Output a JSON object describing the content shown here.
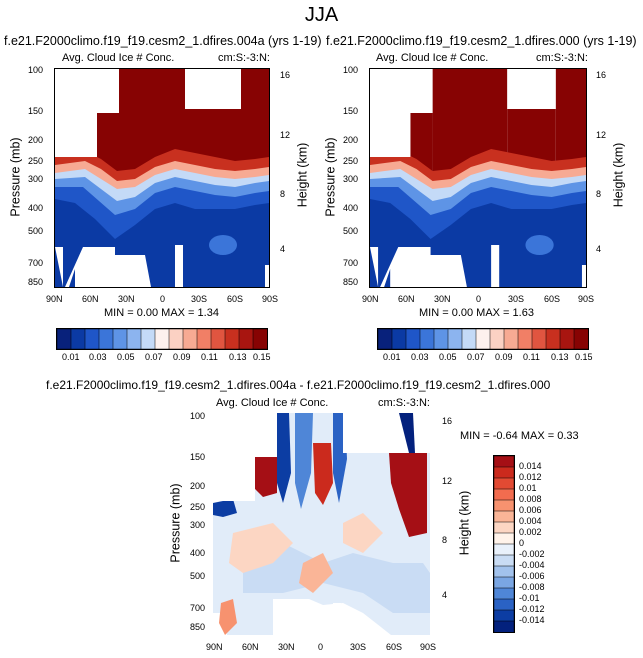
{
  "suptitle": "JJA",
  "panels": [
    {
      "title": "f.e21.F2000climo.f19_f19.cesm2_1.dfires.004a (yrs 1-19)",
      "subtitle_left": "Avg. Cloud Ice # Conc.",
      "subtitle_right": "cm:S:-3:N:",
      "ylabel": "Pressure (mb)",
      "y2label": "Height (km)",
      "minmax": "MIN =  0.00  MAX =  1.34"
    },
    {
      "title": "f.e21.F2000climo.f19_f19.cesm2_1.dfires.000 (yrs 1-19)",
      "subtitle_left": "Avg. Cloud Ice # Conc.",
      "subtitle_right": "cm:S:-3:N:",
      "ylabel": "Pressure (mb)",
      "y2label": "Height (km)",
      "minmax": "MIN =  0.00  MAX =  1.63"
    },
    {
      "title": "f.e21.F2000climo.f19_f19.cesm2_1.dfires.004a - f.e21.F2000climo.f19_f19.cesm2_1.dfires.000",
      "subtitle_left": "Avg. Cloud Ice # Conc.",
      "subtitle_right": "cm:S:-3:N:",
      "ylabel": "Pressure (mb)",
      "y2label": "Height (km)",
      "minmax": "MIN = -0.64  MAX =  0.33"
    }
  ],
  "chart_data": [
    {
      "type": "heatmap",
      "title": "f.e21.F2000climo.f19_f19.cesm2_1.dfires.004a (yrs 1-19)",
      "variable": "Avg. Cloud Ice # Conc.",
      "units": "cm:S:-3:N:",
      "x_ticks": [
        "90N",
        "60N",
        "30N",
        "0",
        "30S",
        "60S",
        "90S"
      ],
      "y_ticks": [
        "100",
        "150",
        "200",
        "250",
        "300",
        "400",
        "500",
        "700",
        "850"
      ],
      "y2_ticks": [
        "16",
        "12",
        "8",
        "4"
      ],
      "xlim": [
        90,
        -90
      ],
      "ylim": [
        870,
        100
      ],
      "y_scale": "log",
      "min": 0.0,
      "max": 1.34,
      "colorbar_labels": [
        "0.01",
        "0.03",
        "0.05",
        "0.07",
        "0.09",
        "0.11",
        "0.13",
        "0.15"
      ],
      "colorbar_colors": [
        "#08217b",
        "#0b3aa4",
        "#1f56c8",
        "#3b75d9",
        "#5e94e6",
        "#8cb4ef",
        "#c4daf7",
        "#fdf1ee",
        "#fbd1c3",
        "#f7aa93",
        "#f17f66",
        "#e05540",
        "#c8301f",
        "#a81510",
        "#870303"
      ]
    },
    {
      "type": "heatmap",
      "title": "f.e21.F2000climo.f19_f19.cesm2_1.dfires.000 (yrs 1-19)",
      "variable": "Avg. Cloud Ice # Conc.",
      "units": "cm:S:-3:N:",
      "x_ticks": [
        "90N",
        "60N",
        "30N",
        "0",
        "30S",
        "60S",
        "90S"
      ],
      "y_ticks": [
        "100",
        "150",
        "200",
        "250",
        "300",
        "400",
        "500",
        "700",
        "850"
      ],
      "y2_ticks": [
        "16",
        "12",
        "8",
        "4"
      ],
      "xlim": [
        90,
        -90
      ],
      "ylim": [
        870,
        100
      ],
      "y_scale": "log",
      "min": 0.0,
      "max": 1.63,
      "colorbar_labels": [
        "0.01",
        "0.03",
        "0.05",
        "0.07",
        "0.09",
        "0.11",
        "0.13",
        "0.15"
      ],
      "colorbar_colors": [
        "#08217b",
        "#0b3aa4",
        "#1f56c8",
        "#3b75d9",
        "#5e94e6",
        "#8cb4ef",
        "#c4daf7",
        "#fdf1ee",
        "#fbd1c3",
        "#f7aa93",
        "#f17f66",
        "#e05540",
        "#c8301f",
        "#a81510",
        "#870303"
      ]
    },
    {
      "type": "heatmap",
      "title": "f.e21.F2000climo.f19_f19.cesm2_1.dfires.004a - f.e21.F2000climo.f19_f19.cesm2_1.dfires.000",
      "variable": "Avg. Cloud Ice # Conc.",
      "units": "cm:S:-3:N:",
      "x_ticks": [
        "90N",
        "60N",
        "30N",
        "0",
        "30S",
        "60S",
        "90S"
      ],
      "y_ticks": [
        "100",
        "150",
        "200",
        "250",
        "300",
        "400",
        "500",
        "700",
        "850"
      ],
      "y2_ticks": [
        "16",
        "12",
        "8",
        "4"
      ],
      "xlim": [
        90,
        -90
      ],
      "ylim": [
        870,
        100
      ],
      "y_scale": "log",
      "min": -0.64,
      "max": 0.33,
      "colorbar_labels": [
        "0.014",
        "0.012",
        "0.01",
        "0.008",
        "0.006",
        "0.004",
        "0.002",
        "0",
        "-0.002",
        "-0.004",
        "-0.006",
        "-0.008",
        "-0.01",
        "-0.012",
        "-0.014"
      ],
      "colorbar_colors": [
        "#a50f15",
        "#cb2a1d",
        "#e24a33",
        "#f26c4f",
        "#f7926f",
        "#fab597",
        "#fcd6c3",
        "#fff3ea",
        "#e9f1fb",
        "#c9dcf4",
        "#a2c2ec",
        "#7aa6e3",
        "#4f86d7",
        "#2a62c4",
        "#0c3da3",
        "#03217d"
      ]
    }
  ]
}
